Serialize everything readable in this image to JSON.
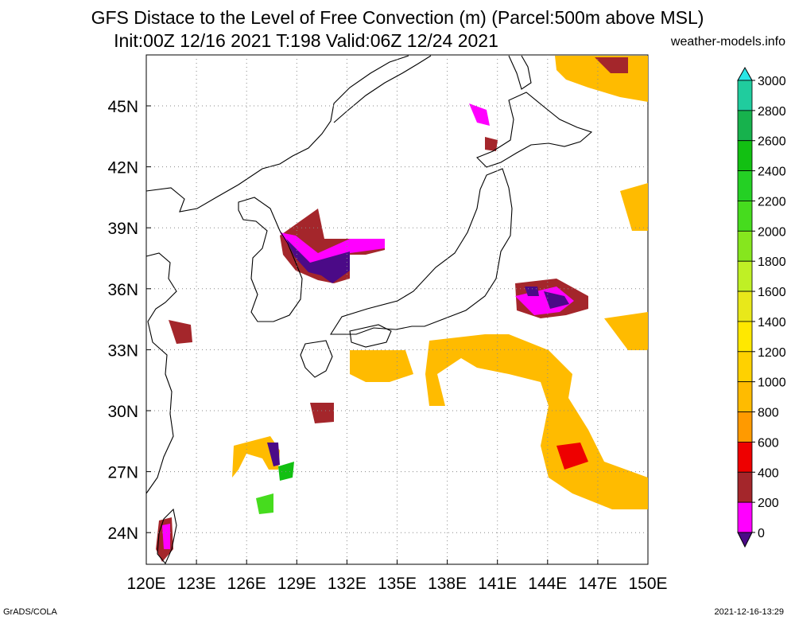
{
  "header": {
    "title_line1": "GFS Distace to the Level of Free Convection (m) (Parcel:500m above MSL)",
    "title_line2": "Init:00Z 12/16 2021 T:198 Valid:06Z 12/24 2021",
    "site": "weather-models.info"
  },
  "footer": {
    "left": "GrADS/COLA",
    "right": "2021-12-16-13:29"
  },
  "map": {
    "lon_labels": [
      "120E",
      "123E",
      "126E",
      "129E",
      "132E",
      "135E",
      "138E",
      "141E",
      "144E",
      "147E",
      "150E"
    ],
    "lat_labels": [
      "45N",
      "42N",
      "39N",
      "36N",
      "33N",
      "30N",
      "27N",
      "24N"
    ],
    "grid_lines": "dotted",
    "projection": "lat-lon"
  },
  "colorbar": {
    "levels": [
      "3000",
      "2800",
      "2600",
      "2400",
      "2200",
      "2000",
      "1800",
      "1600",
      "1400",
      "1200",
      "1000",
      "800",
      "600",
      "400",
      "200",
      "0"
    ],
    "colors_top_to_bottom": [
      "#29e6e6",
      "#20cc9e",
      "#17b24d",
      "#12c012",
      "#24d024",
      "#46dc1e",
      "#86e61e",
      "#bff025",
      "#e8e81a",
      "#ffe800",
      "#ffd100",
      "#ffbb00",
      "#ff9a00",
      "#ee0000",
      "#a4262b",
      "#ff00ff",
      "#4b0a87"
    ]
  },
  "cape_regions": [
    {
      "name": "yellow-sea-korea",
      "colors": [
        "#4b0a87",
        "#ff00ff",
        "#a4262b",
        "#ee0000"
      ]
    },
    {
      "name": "east-of-kanto",
      "colors": [
        "#4b0a87",
        "#ff00ff",
        "#a4262b",
        "#ee0000",
        "#ffbb00"
      ]
    },
    {
      "name": "pacific-south-of-japan",
      "colors": [
        "#ffbb00",
        "#ffd100",
        "#ff9a00",
        "#ee0000"
      ]
    },
    {
      "name": "ryukyu-islands",
      "colors": [
        "#ffbb00",
        "#4b0a87",
        "#ff00ff",
        "#12c012"
      ]
    },
    {
      "name": "taiwan",
      "colors": [
        "#ff00ff",
        "#4b0a87",
        "#a4262b"
      ]
    },
    {
      "name": "kuril-hokkaido",
      "colors": [
        "#ffbb00",
        "#a4262b",
        "#ee0000",
        "#ff00ff"
      ]
    }
  ]
}
